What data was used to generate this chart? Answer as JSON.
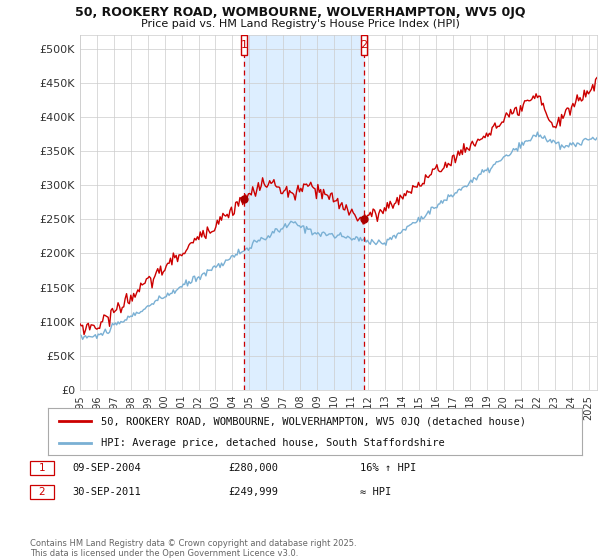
{
  "title1": "50, ROOKERY ROAD, WOMBOURNE, WOLVERHAMPTON, WV5 0JQ",
  "title2": "Price paid vs. HM Land Registry's House Price Index (HPI)",
  "ylabel_ticks": [
    "£0",
    "£50K",
    "£100K",
    "£150K",
    "£200K",
    "£250K",
    "£300K",
    "£350K",
    "£400K",
    "£450K",
    "£500K"
  ],
  "ytick_values": [
    0,
    50000,
    100000,
    150000,
    200000,
    250000,
    300000,
    350000,
    400000,
    450000,
    500000
  ],
  "ylim": [
    0,
    520000
  ],
  "xlim_start": 1995.0,
  "xlim_end": 2025.5,
  "marker1_x": 2004.69,
  "marker1_y": 280000,
  "marker1_label": "09-SEP-2004",
  "marker1_price": "£280,000",
  "marker1_note": "16% ↑ HPI",
  "marker2_x": 2011.75,
  "marker2_y": 249999,
  "marker2_label": "30-SEP-2011",
  "marker2_price": "£249,999",
  "marker2_note": "≈ HPI",
  "line1_color": "#cc0000",
  "line2_color": "#7ab0d4",
  "shade_color": "#ddeeff",
  "marker_box_color": "#cc0000",
  "dot_color": "#aa0000",
  "legend1": "50, ROOKERY ROAD, WOMBOURNE, WOLVERHAMPTON, WV5 0JQ (detached house)",
  "legend2": "HPI: Average price, detached house, South Staffordshire",
  "footer": "Contains HM Land Registry data © Crown copyright and database right 2025.\nThis data is licensed under the Open Government Licence v3.0.",
  "grid_color": "#cccccc",
  "bg_color": "#ffffff",
  "tick_label_color": "#333333"
}
